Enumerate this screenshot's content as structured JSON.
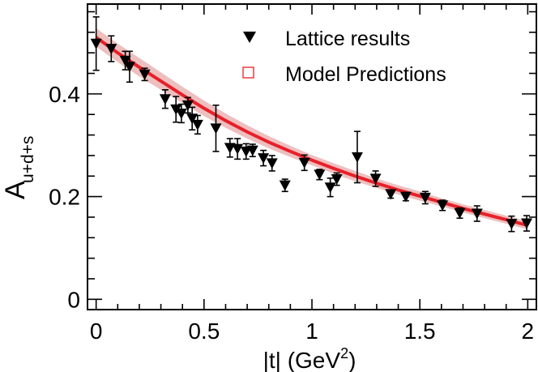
{
  "chart_data": {
    "type": "scatter",
    "xlabel": "|t| (GeV",
    "xlabel_sup": "2",
    "xlabel_end": ")",
    "ylabel_main": "A",
    "ylabel_sub": "u+d+s",
    "xlim": [
      -0.04,
      2.04
    ],
    "ylim": [
      -0.02,
      0.575
    ],
    "x_ticks": [
      0,
      0.5,
      1,
      1.5,
      2
    ],
    "x_tick_labels": [
      "0",
      "0.5",
      "1",
      "1.5",
      "2"
    ],
    "y_ticks": [
      0,
      0.2,
      0.4
    ],
    "y_tick_labels": [
      "0",
      "0.2",
      "0.4"
    ],
    "legend": {
      "position": "top-right",
      "entries": [
        {
          "label": "Lattice results",
          "marker": "filled-down-triangle",
          "color": "#000000"
        },
        {
          "label": "Model Predictions",
          "marker": "open-square",
          "color": "#e8202a"
        }
      ]
    },
    "series": [
      {
        "name": "Lattice results",
        "points": [
          {
            "x": 0.0,
            "y": 0.498,
            "err": 0.052
          },
          {
            "x": 0.07,
            "y": 0.488,
            "err": 0.025
          },
          {
            "x": 0.135,
            "y": 0.465,
            "err": 0.018
          },
          {
            "x": 0.155,
            "y": 0.453,
            "err": 0.03
          },
          {
            "x": 0.225,
            "y": 0.438,
            "err": 0.012
          },
          {
            "x": 0.32,
            "y": 0.39,
            "err": 0.018
          },
          {
            "x": 0.37,
            "y": 0.37,
            "err": 0.025
          },
          {
            "x": 0.395,
            "y": 0.362,
            "err": 0.018
          },
          {
            "x": 0.425,
            "y": 0.378,
            "err": 0.015
          },
          {
            "x": 0.445,
            "y": 0.352,
            "err": 0.022
          },
          {
            "x": 0.47,
            "y": 0.34,
            "err": 0.018
          },
          {
            "x": 0.555,
            "y": 0.333,
            "err": 0.045
          },
          {
            "x": 0.62,
            "y": 0.295,
            "err": 0.018
          },
          {
            "x": 0.655,
            "y": 0.293,
            "err": 0.02
          },
          {
            "x": 0.695,
            "y": 0.288,
            "err": 0.015
          },
          {
            "x": 0.725,
            "y": 0.29,
            "err": 0.012
          },
          {
            "x": 0.775,
            "y": 0.275,
            "err": 0.015
          },
          {
            "x": 0.815,
            "y": 0.265,
            "err": 0.015
          },
          {
            "x": 0.875,
            "y": 0.222,
            "err": 0.012
          },
          {
            "x": 0.965,
            "y": 0.266,
            "err": 0.015
          },
          {
            "x": 1.035,
            "y": 0.243,
            "err": 0.01
          },
          {
            "x": 1.085,
            "y": 0.218,
            "err": 0.018
          },
          {
            "x": 1.115,
            "y": 0.234,
            "err": 0.012
          },
          {
            "x": 1.21,
            "y": 0.277,
            "err": 0.05
          },
          {
            "x": 1.295,
            "y": 0.235,
            "err": 0.015
          },
          {
            "x": 1.365,
            "y": 0.205,
            "err": 0.008
          },
          {
            "x": 1.435,
            "y": 0.2,
            "err": 0.008
          },
          {
            "x": 1.525,
            "y": 0.198,
            "err": 0.012
          },
          {
            "x": 1.605,
            "y": 0.183,
            "err": 0.01
          },
          {
            "x": 1.685,
            "y": 0.168,
            "err": 0.01
          },
          {
            "x": 1.765,
            "y": 0.167,
            "err": 0.015
          },
          {
            "x": 1.925,
            "y": 0.147,
            "err": 0.015
          },
          {
            "x": 1.995,
            "y": 0.148,
            "err": 0.015
          }
        ]
      },
      {
        "name": "Model Predictions",
        "color": "#e8202a",
        "band_color": "#e8a9a9",
        "x": [
          0,
          0.1,
          0.2,
          0.3,
          0.4,
          0.5,
          0.6,
          0.7,
          0.8,
          0.9,
          1.0,
          1.1,
          1.2,
          1.3,
          1.4,
          1.5,
          1.6,
          1.7,
          1.8,
          1.9,
          2.0
        ],
        "y": [
          0.51,
          0.48,
          0.452,
          0.425,
          0.398,
          0.372,
          0.348,
          0.326,
          0.306,
          0.288,
          0.271,
          0.255,
          0.24,
          0.226,
          0.213,
          0.201,
          0.189,
          0.177,
          0.166,
          0.155,
          0.144
        ],
        "band_half_width": [
          0.018,
          0.018,
          0.018,
          0.017,
          0.016,
          0.015,
          0.014,
          0.013,
          0.012,
          0.011,
          0.01,
          0.01,
          0.01,
          0.009,
          0.009,
          0.009,
          0.008,
          0.008,
          0.008,
          0.008,
          0.008
        ]
      }
    ]
  }
}
